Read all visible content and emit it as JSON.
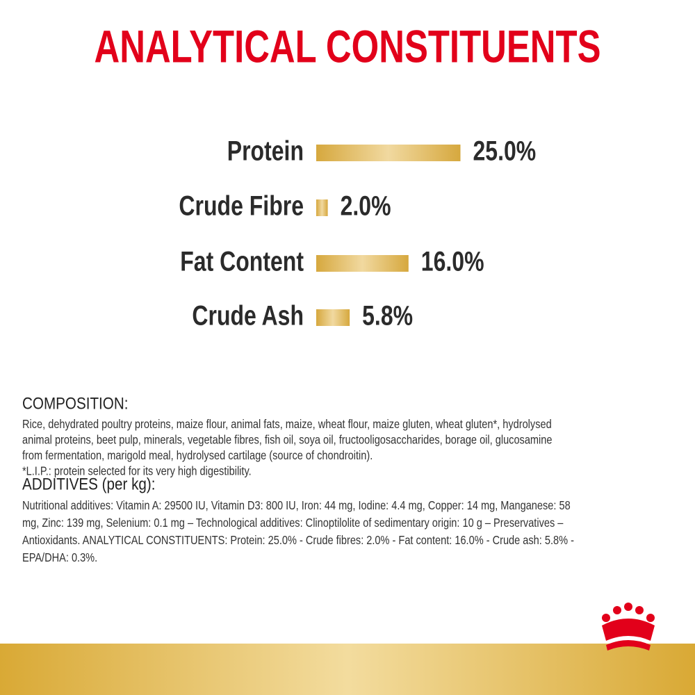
{
  "chart_data": {
    "type": "bar",
    "title": "ANALYTICAL CONSTITUENTS",
    "categories": [
      "Protein",
      "Crude Fibre",
      "Fat Content",
      "Crude Ash"
    ],
    "values": [
      25.0,
      2.0,
      16.0,
      5.8
    ],
    "value_labels": [
      "25.0%",
      "2.0%",
      "16.0%",
      "5.8%"
    ],
    "color": "#d9ad4a"
  },
  "composition": {
    "heading": "COMPOSITION:",
    "lines": [
      "Rice, dehydrated poultry proteins, maize flour, animal fats, maize, wheat flour, maize gluten, wheat gluten*, hydrolysed",
      "animal proteins, beet pulp, minerals, vegetable fibres, fish oil, soya oil, fructooligosaccharides, borage oil, glucosamine",
      "from fermentation, marigold meal, hydrolysed cartilage (source of chondroitin).",
      "*L.I.P.: protein selected for its very high digestibility."
    ]
  },
  "additives": {
    "heading": "ADDITIVES (per kg):",
    "lines": [
      "Nutritional additives: Vitamin A: 29500 IU, Vitamin D3: 800 IU, Iron: 44 mg, Iodine: 4.4 mg, Copper: 14 mg, Manganese: 58",
      "mg, Zinc: 139 mg, Selenium: 0.1 mg – Technological additives: Clinoptilolite of sedimentary origin: 10 g – Preservatives –",
      "Antioxidants. ANALYTICAL CONSTITUENTS: Protein: 25.0% - Crude fibres: 2.0% - Fat content: 16.0% - Crude ash: 5.8% -",
      "EPA/DHA: 0.3%."
    ]
  }
}
